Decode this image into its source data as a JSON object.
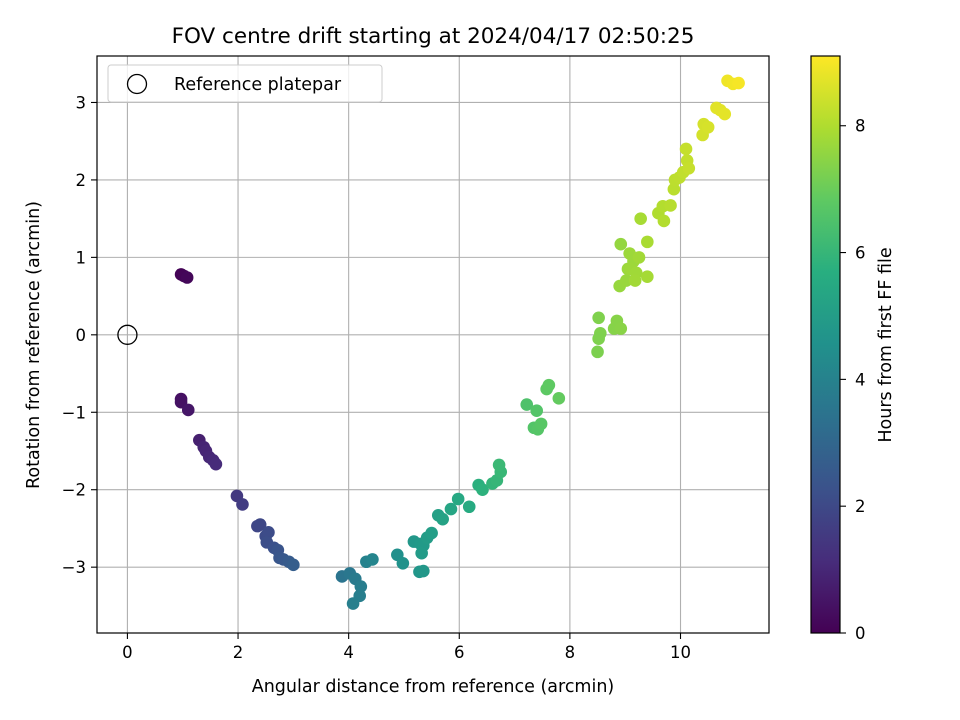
{
  "chart_data": {
    "type": "scatter",
    "title": "FOV centre drift starting at 2024/04/17 02:50:25",
    "xlabel": "Angular distance from reference (arcmin)",
    "ylabel": "Rotation from reference (arcmin)",
    "xlim": [
      -0.55,
      11.6
    ],
    "ylim": [
      -3.85,
      3.6
    ],
    "xticks": [
      0,
      2,
      4,
      6,
      8,
      10
    ],
    "yticks": [
      -3,
      -2,
      -1,
      0,
      1,
      2,
      3
    ],
    "grid": true,
    "legend": {
      "placement": "top-left",
      "entries": [
        "Reference platepar"
      ]
    },
    "reference_point": {
      "name": "Reference platepar",
      "x": 0,
      "y": 0
    },
    "colorbar": {
      "label": "Hours from first FF file",
      "range": [
        0,
        9.1
      ],
      "ticks": [
        0,
        2,
        4,
        6,
        8
      ],
      "colormap": "viridis"
    },
    "series": [
      {
        "points": [
          [
            0.97,
            0.78,
            0.05
          ],
          [
            1.02,
            0.76,
            0.1
          ],
          [
            1.08,
            0.74,
            0.15
          ],
          [
            0.97,
            -0.83,
            0.4
          ],
          [
            0.97,
            -0.87,
            0.45
          ],
          [
            1.1,
            -0.97,
            0.55
          ],
          [
            1.3,
            -1.36,
            0.8
          ],
          [
            1.38,
            -1.45,
            0.9
          ],
          [
            1.42,
            -1.5,
            0.95
          ],
          [
            1.48,
            -1.58,
            1.0
          ],
          [
            1.55,
            -1.62,
            1.05
          ],
          [
            1.6,
            -1.67,
            1.1
          ],
          [
            1.98,
            -2.08,
            1.5
          ],
          [
            2.08,
            -2.19,
            1.6
          ],
          [
            2.35,
            -2.47,
            1.9
          ],
          [
            2.4,
            -2.45,
            1.95
          ],
          [
            2.5,
            -2.6,
            2.05
          ],
          [
            2.55,
            -2.55,
            2.1
          ],
          [
            2.52,
            -2.68,
            2.15
          ],
          [
            2.65,
            -2.75,
            2.25
          ],
          [
            2.72,
            -2.78,
            2.35
          ],
          [
            2.75,
            -2.88,
            2.4
          ],
          [
            2.82,
            -2.9,
            2.5
          ],
          [
            2.92,
            -2.93,
            2.6
          ],
          [
            3.0,
            -2.97,
            2.7
          ],
          [
            3.88,
            -3.12,
            3.5
          ],
          [
            4.02,
            -3.08,
            3.6
          ],
          [
            4.12,
            -3.15,
            3.7
          ],
          [
            4.22,
            -3.25,
            3.8
          ],
          [
            4.2,
            -3.37,
            3.85
          ],
          [
            4.08,
            -3.47,
            3.9
          ],
          [
            4.32,
            -2.93,
            4.0
          ],
          [
            4.43,
            -2.9,
            4.1
          ],
          [
            4.88,
            -2.84,
            4.5
          ],
          [
            4.98,
            -2.95,
            4.6
          ],
          [
            5.18,
            -2.67,
            4.8
          ],
          [
            5.3,
            -2.7,
            4.85
          ],
          [
            5.35,
            -2.72,
            4.9
          ],
          [
            5.32,
            -2.82,
            4.95
          ],
          [
            5.28,
            -3.06,
            4.75
          ],
          [
            5.35,
            -3.05,
            4.8
          ],
          [
            5.42,
            -2.62,
            5.0
          ],
          [
            5.5,
            -2.56,
            5.05
          ],
          [
            5.62,
            -2.33,
            5.15
          ],
          [
            5.7,
            -2.38,
            5.2
          ],
          [
            5.85,
            -2.25,
            5.35
          ],
          [
            5.98,
            -2.12,
            5.45
          ],
          [
            6.18,
            -2.22,
            5.55
          ],
          [
            6.35,
            -1.94,
            5.75
          ],
          [
            6.42,
            -2.0,
            5.8
          ],
          [
            6.6,
            -1.92,
            5.95
          ],
          [
            6.68,
            -1.88,
            6.0
          ],
          [
            6.75,
            -1.77,
            6.05
          ],
          [
            6.72,
            -1.68,
            6.1
          ],
          [
            7.22,
            -0.9,
            6.5
          ],
          [
            7.35,
            -1.2,
            6.6
          ],
          [
            7.42,
            -1.22,
            6.65
          ],
          [
            7.4,
            -0.98,
            6.6
          ],
          [
            7.48,
            -1.15,
            6.7
          ],
          [
            7.58,
            -0.7,
            6.8
          ],
          [
            7.62,
            -0.65,
            6.82
          ],
          [
            7.8,
            -0.82,
            6.9
          ],
          [
            8.5,
            -0.22,
            7.25
          ],
          [
            8.52,
            0.22,
            7.3
          ],
          [
            8.55,
            0.02,
            7.3
          ],
          [
            8.52,
            -0.05,
            7.28
          ],
          [
            8.8,
            0.08,
            7.4
          ],
          [
            8.85,
            0.18,
            7.42
          ],
          [
            8.92,
            0.08,
            7.45
          ],
          [
            8.92,
            1.17,
            7.6
          ],
          [
            8.9,
            0.63,
            7.65
          ],
          [
            9.02,
            0.7,
            7.68
          ],
          [
            9.05,
            0.85,
            7.7
          ],
          [
            9.15,
            0.95,
            7.72
          ],
          [
            9.08,
            1.05,
            7.73
          ],
          [
            9.1,
            0.85,
            7.75
          ],
          [
            9.2,
            0.8,
            7.78
          ],
          [
            9.25,
            1.0,
            7.8
          ],
          [
            9.18,
            0.7,
            7.8
          ],
          [
            9.4,
            0.75,
            7.85
          ],
          [
            9.28,
            1.5,
            7.88
          ],
          [
            9.4,
            1.2,
            7.9
          ],
          [
            9.6,
            1.57,
            8.0
          ],
          [
            9.68,
            1.66,
            8.05
          ],
          [
            9.7,
            1.47,
            8.05
          ],
          [
            9.82,
            1.67,
            8.1
          ],
          [
            9.88,
            1.88,
            8.15
          ],
          [
            9.9,
            2.0,
            8.18
          ],
          [
            9.98,
            2.03,
            8.2
          ],
          [
            10.05,
            2.1,
            8.25
          ],
          [
            10.1,
            2.4,
            8.3
          ],
          [
            10.12,
            2.25,
            8.28
          ],
          [
            10.15,
            2.15,
            8.32
          ],
          [
            10.4,
            2.58,
            8.5
          ],
          [
            10.42,
            2.72,
            8.52
          ],
          [
            10.5,
            2.68,
            8.55
          ],
          [
            10.65,
            2.93,
            8.7
          ],
          [
            10.72,
            2.9,
            8.72
          ],
          [
            10.8,
            2.85,
            8.75
          ],
          [
            10.85,
            3.28,
            8.9
          ],
          [
            10.95,
            3.24,
            8.95
          ],
          [
            11.05,
            3.25,
            9.0
          ]
        ]
      }
    ]
  }
}
